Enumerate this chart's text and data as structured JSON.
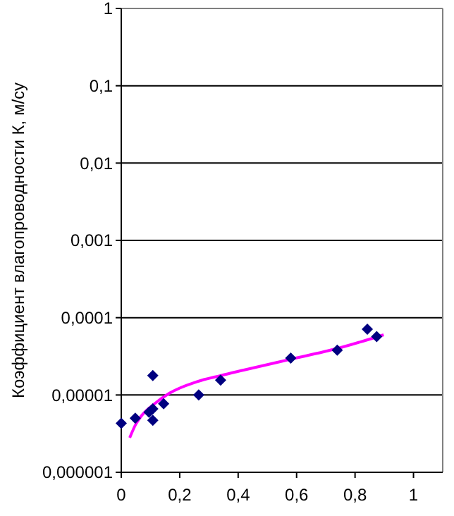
{
  "chart_data": {
    "type": "scatter",
    "ylabel": "Коэффициент влагопроводности К, м/су",
    "log": "y",
    "grid": "y",
    "marker": "diamond",
    "xlim": [
      0,
      1.1
    ],
    "ylim": [
      1e-06,
      1
    ],
    "xticks": [
      0,
      {
        "value": 0.2,
        "label": "0,2"
      },
      {
        "value": 0.4,
        "label": "0,4"
      },
      {
        "value": 0.6,
        "label": "0,6"
      },
      {
        "value": 0.8,
        "label": "0,8"
      },
      1
    ],
    "yticks": [
      {
        "value": 1e-06,
        "label": "0,000001"
      },
      {
        "value": 1e-05,
        "label": "0,00001"
      },
      {
        "value": 0.0001,
        "label": "0,0001"
      },
      {
        "value": 0.001,
        "label": "0,001"
      },
      {
        "value": 0.01,
        "label": "0,01"
      },
      {
        "value": 0.1,
        "label": "0,1"
      },
      1
    ],
    "series": [
      {
        "color": "#000080",
        "x": [
          0,
          0.048,
          0.095,
          0.108,
          0.108,
          0.108,
          0.145,
          0.265,
          0.34,
          0.58,
          0.739,
          0.842,
          0.874
        ],
        "values": [
          4.3e-06,
          5e-06,
          6e-06,
          6.6e-06,
          4.7e-06,
          1.78e-05,
          7.7e-06,
          1e-05,
          1.56e-05,
          3e-05,
          3.8e-05,
          7.1e-05,
          5.7e-05
        ]
      },
      {
        "type": "line",
        "color": "#ff00ff",
        "marker": "none",
        "x": [
          0.029,
          0.05,
          0.066,
          0.114,
          0.162,
          0.258,
          0.339,
          0.419,
          0.58,
          0.74,
          0.898
        ],
        "values": [
          2.8e-06,
          4.2e-06,
          5.2e-06,
          7.7e-06,
          1.04e-05,
          1.48e-05,
          1.78e-05,
          2.1e-05,
          2.9e-05,
          4e-05,
          6e-05
        ]
      }
    ]
  }
}
